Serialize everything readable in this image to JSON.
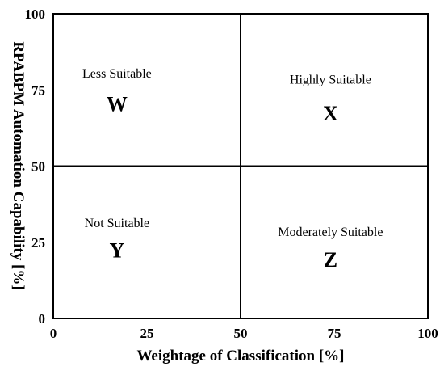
{
  "chart_data": {
    "type": "scatter",
    "title": "",
    "xlabel": "Weightage of Classification [%]",
    "ylabel": "RPABPM Automation Capability [%]",
    "xlim": [
      0,
      100
    ],
    "ylim": [
      0,
      100
    ],
    "x_ticks": [
      "0",
      "25",
      "50",
      "75",
      "100"
    ],
    "y_ticks": [
      "0",
      "25",
      "50",
      "75",
      "100"
    ],
    "dividers": {
      "x": 50,
      "y": 50
    },
    "grid": false,
    "quadrants": [
      {
        "label": "Less Suitable",
        "letter": "W",
        "label_x": 17,
        "label_y": 79,
        "letter_x": 17,
        "letter_y": 68
      },
      {
        "label": "Highly Suitable",
        "letter": "X",
        "label_x": 74,
        "label_y": 77,
        "letter_x": 74,
        "letter_y": 65
      },
      {
        "label": "Not Suitable",
        "letter": "Y",
        "label_x": 17,
        "label_y": 30,
        "letter_x": 17,
        "letter_y": 20
      },
      {
        "label": "Moderately Suitable",
        "letter": "Z",
        "label_x": 74,
        "label_y": 27,
        "letter_x": 74,
        "letter_y": 17
      }
    ]
  }
}
